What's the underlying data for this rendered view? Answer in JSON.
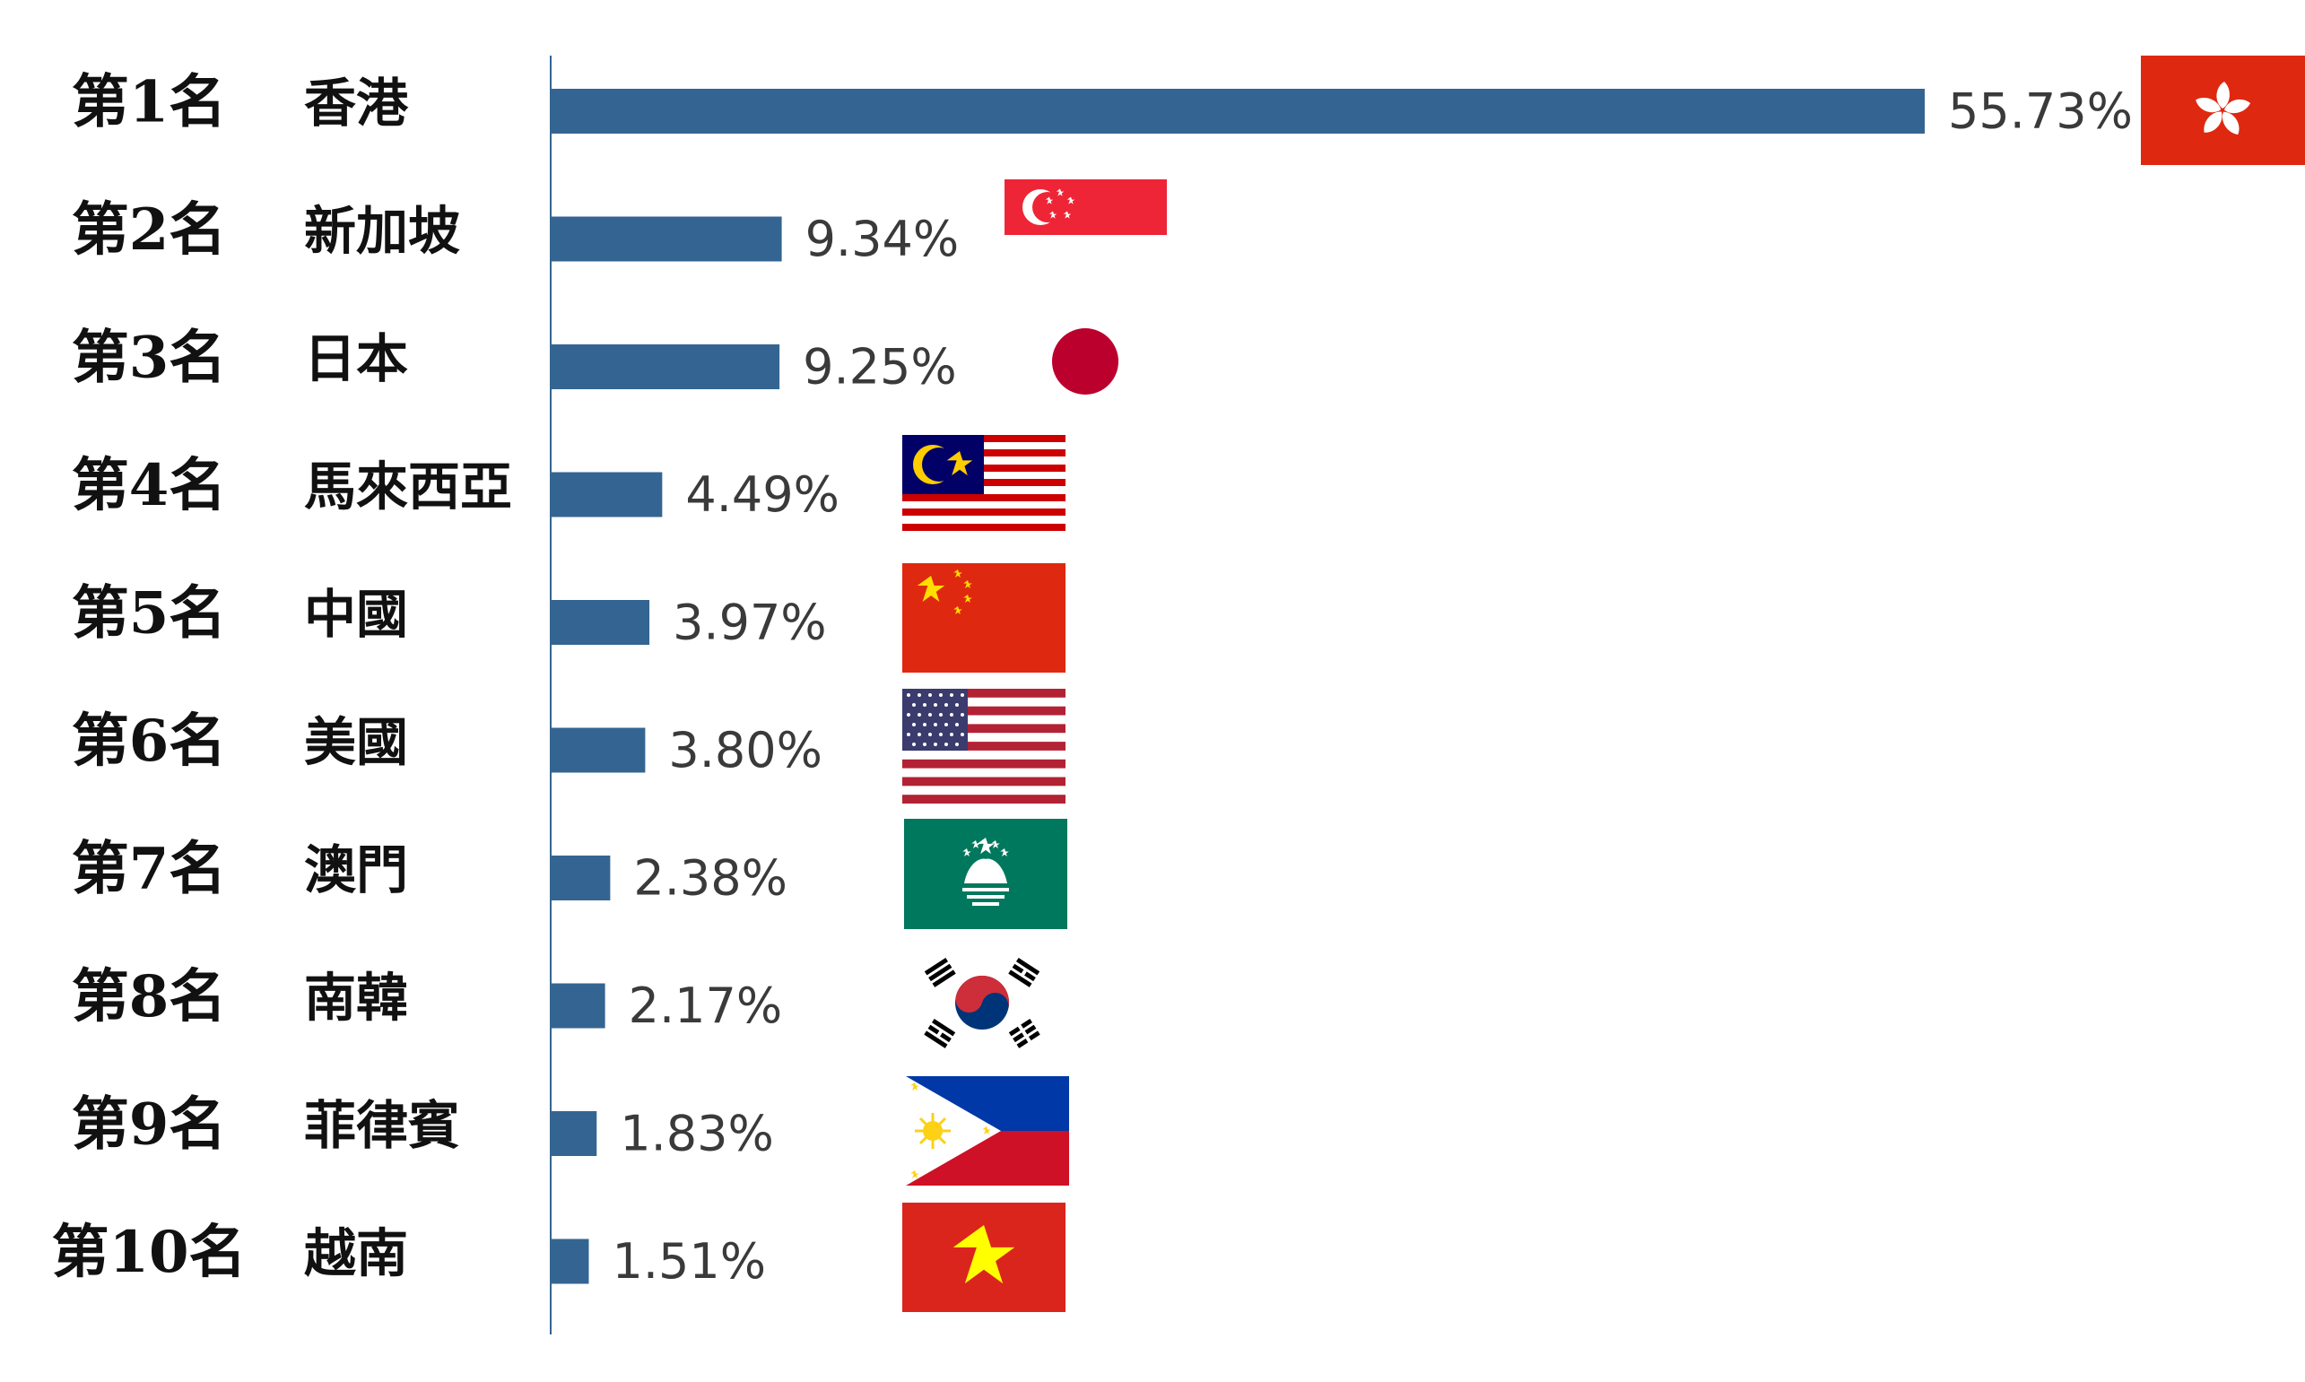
{
  "chart_data": {
    "type": "bar",
    "orientation": "horizontal",
    "title": "",
    "xlabel": "",
    "ylabel": "",
    "xlim": [
      0,
      55.73
    ],
    "grid": false,
    "legend": "none",
    "bar_color": "#346592",
    "axis_color": "#346592",
    "value_suffix": "%",
    "rows": [
      {
        "rank": "第1名",
        "country": "香港",
        "value": 55.73,
        "label": "55.73%",
        "flag": "hong-kong-flag"
      },
      {
        "rank": "第2名",
        "country": "新加坡",
        "value": 9.34,
        "label": "9.34%",
        "flag": "singapore-flag"
      },
      {
        "rank": "第3名",
        "country": "日本",
        "value": 9.25,
        "label": "9.25%",
        "flag": "japan-flag"
      },
      {
        "rank": "第4名",
        "country": "馬來西亞",
        "value": 4.49,
        "label": "4.49%",
        "flag": "malaysia-flag"
      },
      {
        "rank": "第5名",
        "country": "中國",
        "value": 3.97,
        "label": "3.97%",
        "flag": "china-flag"
      },
      {
        "rank": "第6名",
        "country": "美國",
        "value": 3.8,
        "label": "3.80%",
        "flag": "usa-flag"
      },
      {
        "rank": "第7名",
        "country": "澳門",
        "value": 2.38,
        "label": "2.38%",
        "flag": "macau-flag"
      },
      {
        "rank": "第8名",
        "country": "南韓",
        "value": 2.17,
        "label": "2.17%",
        "flag": "south-korea-flag"
      },
      {
        "rank": "第9名",
        "country": "菲律賓",
        "value": 1.83,
        "label": "1.83%",
        "flag": "philippines-flag"
      },
      {
        "rank": "第10名",
        "country": "越南",
        "value": 1.51,
        "label": "1.51%",
        "flag": "vietnam-flag"
      }
    ]
  }
}
